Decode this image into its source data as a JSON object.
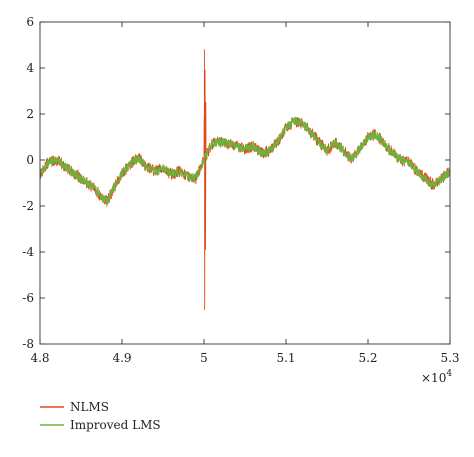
{
  "chart_data": {
    "type": "line",
    "title": "",
    "xlabel": "",
    "ylabel": "",
    "x_multiplier_label": "×10",
    "x_multiplier_exponent": "4",
    "xlim": [
      4.8,
      5.3
    ],
    "ylim": [
      -8,
      6
    ],
    "x_ticks": [
      4.8,
      4.9,
      5.0,
      5.1,
      5.2,
      5.3
    ],
    "x_tick_labels": [
      "4.8",
      "4.9",
      "5",
      "5.1",
      "5.2",
      "5.3"
    ],
    "y_ticks": [
      -8,
      -6,
      -4,
      -2,
      0,
      2,
      4,
      6
    ],
    "y_tick_labels": [
      "-8",
      "-6",
      "-4",
      "-2",
      "0",
      "2",
      "4",
      "6"
    ],
    "grid": false,
    "legend_position": "below-left",
    "series": [
      {
        "name": "NLMS",
        "color": "#e04a1a",
        "noise": 0.25,
        "spikes": [
          [
            5.0005,
            4.8
          ],
          [
            5.0008,
            -6.5
          ],
          [
            5.0013,
            3.9
          ],
          [
            5.0018,
            -3.9
          ],
          [
            5.0022,
            2.5
          ],
          [
            5.0002,
            1.8
          ]
        ]
      },
      {
        "name": "Improved LMS",
        "color": "#6ab43e",
        "noise": 0.18,
        "spikes": []
      }
    ],
    "baseline": {
      "x": [
        4.8,
        4.81,
        4.82,
        4.835,
        4.85,
        4.865,
        4.875,
        4.882,
        4.89,
        4.9,
        4.91,
        4.92,
        4.93,
        4.94,
        4.95,
        4.96,
        4.97,
        4.98,
        4.99,
        4.995,
        5.0,
        5.005,
        5.01,
        5.02,
        5.03,
        5.04,
        5.05,
        5.06,
        5.07,
        5.08,
        5.09,
        5.1,
        5.11,
        5.12,
        5.13,
        5.14,
        5.15,
        5.16,
        5.17,
        5.18,
        5.19,
        5.2,
        5.21,
        5.22,
        5.23,
        5.24,
        5.25,
        5.26,
        5.27,
        5.28,
        5.29,
        5.3
      ],
      "y": [
        -0.6,
        -0.1,
        0.0,
        -0.4,
        -0.8,
        -1.2,
        -1.6,
        -1.8,
        -1.2,
        -0.6,
        -0.2,
        0.1,
        -0.3,
        -0.5,
        -0.4,
        -0.6,
        -0.5,
        -0.7,
        -0.8,
        -0.4,
        0.0,
        0.4,
        0.7,
        0.8,
        0.7,
        0.6,
        0.5,
        0.6,
        0.3,
        0.4,
        0.8,
        1.4,
        1.7,
        1.6,
        1.2,
        0.8,
        0.4,
        0.8,
        0.4,
        0.0,
        0.5,
        1.0,
        1.1,
        0.7,
        0.3,
        0.0,
        -0.1,
        -0.5,
        -0.8,
        -1.1,
        -0.8,
        -0.5
      ]
    }
  }
}
